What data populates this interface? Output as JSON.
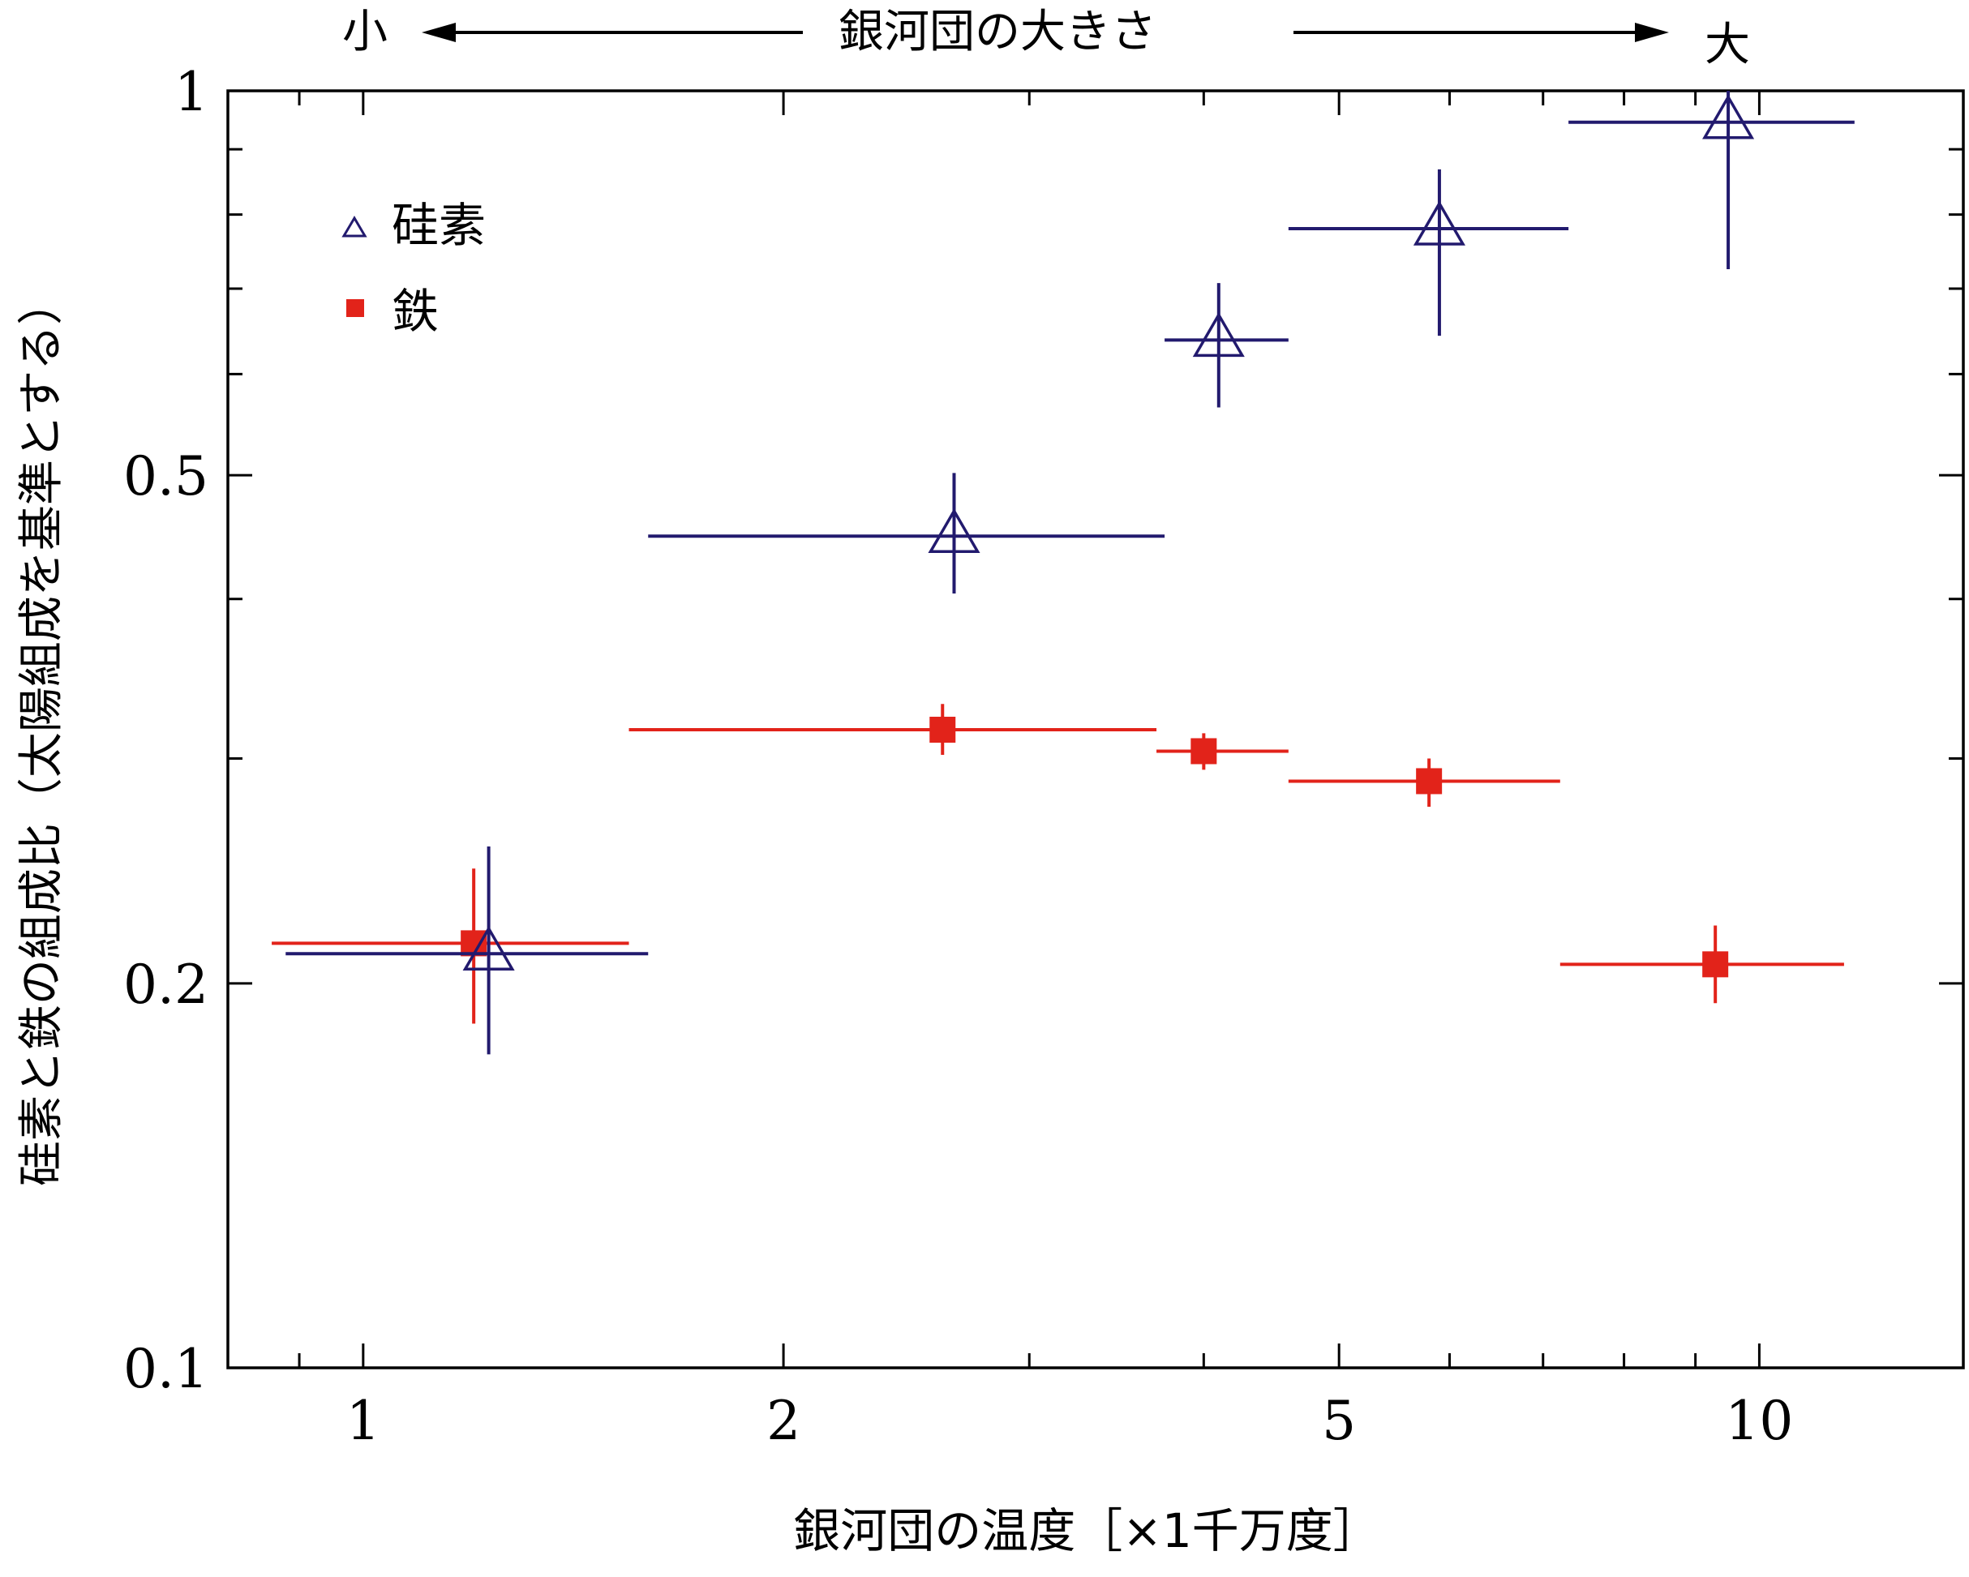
{
  "chart_data": {
    "type": "scatter",
    "x_scale": "log",
    "y_scale": "log",
    "xlim": [
      0.8,
      14
    ],
    "ylim": [
      0.1,
      1
    ],
    "xlabel": "銀河団の温度［×1千万度］",
    "ylabel": "硅素と鉄の組成比（太陽組成を基準とする）",
    "top_annotation": {
      "left": "小",
      "center": "銀河団の大きさ",
      "right": "大"
    },
    "x_ticks": [
      {
        "value": 1,
        "label": "1"
      },
      {
        "value": 2,
        "label": "2"
      },
      {
        "value": 5,
        "label": "5"
      },
      {
        "value": 10,
        "label": "10"
      }
    ],
    "y_ticks": [
      {
        "value": 0.1,
        "label": "0.1"
      },
      {
        "value": 0.2,
        "label": "0.2"
      },
      {
        "value": 0.5,
        "label": "0.5"
      },
      {
        "value": 1,
        "label": "1"
      }
    ],
    "x_minor_ticks": [
      0.9,
      3,
      4,
      6,
      7,
      8,
      9
    ],
    "y_minor_ticks": [
      0.3,
      0.4,
      0.6,
      0.7,
      0.8,
      0.9
    ],
    "grid": false,
    "legend_placement": "top-left",
    "series": [
      {
        "name": "硅素",
        "marker": "open-triangle",
        "color": "#221a6e",
        "points": [
          {
            "x": 1.23,
            "y": 0.211,
            "xerr": [
              0.88,
              1.6
            ],
            "yerr": [
              0.176,
              0.256
            ]
          },
          {
            "x": 2.65,
            "y": 0.448,
            "xerr": [
              1.6,
              3.75
            ],
            "yerr": [
              0.404,
              0.502
            ]
          },
          {
            "x": 4.1,
            "y": 0.638,
            "xerr": [
              3.75,
              4.6
            ],
            "yerr": [
              0.565,
              0.707
            ]
          },
          {
            "x": 5.9,
            "y": 0.78,
            "xerr": [
              4.6,
              7.3
            ],
            "yerr": [
              0.643,
              0.868
            ]
          },
          {
            "x": 9.5,
            "y": 0.945,
            "xerr": [
              7.3,
              11.7
            ],
            "yerr": [
              0.725,
              1.0
            ]
          }
        ]
      },
      {
        "name": "鉄",
        "marker": "filled-square",
        "color": "#e2231a",
        "points": [
          {
            "x": 1.2,
            "y": 0.215,
            "xerr": [
              0.86,
              1.55
            ],
            "yerr": [
              0.186,
              0.246
            ]
          },
          {
            "x": 2.6,
            "y": 0.316,
            "xerr": [
              1.55,
              3.7
            ],
            "yerr": [
              0.302,
              0.331
            ]
          },
          {
            "x": 4.0,
            "y": 0.304,
            "xerr": [
              3.7,
              4.6
            ],
            "yerr": [
              0.294,
              0.314
            ]
          },
          {
            "x": 5.8,
            "y": 0.288,
            "xerr": [
              4.6,
              7.2
            ],
            "yerr": [
              0.275,
              0.3
            ]
          },
          {
            "x": 9.3,
            "y": 0.207,
            "xerr": [
              7.2,
              11.5
            ],
            "yerr": [
              0.193,
              0.222
            ]
          }
        ]
      }
    ]
  }
}
